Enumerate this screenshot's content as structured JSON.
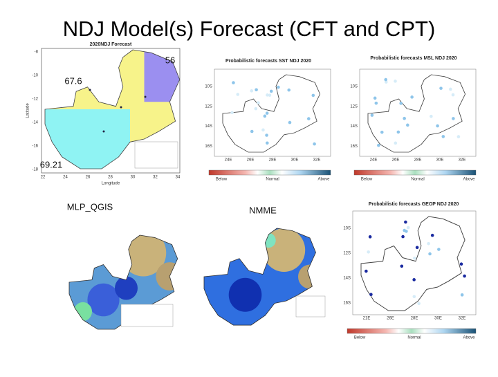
{
  "title": "NDJ Model(s) Forecast  (CFT and CPT)",
  "annotations": {
    "north_east": "56",
    "north_west": "67.6",
    "south_west": "69.21"
  },
  "cft_map": {
    "title": "2020NDJ Forecast",
    "x_label": "Longitude",
    "y_label": "Latitude",
    "xticks": [
      "22",
      "24",
      "26",
      "28",
      "30",
      "32",
      "34"
    ],
    "yticks": [
      "-8",
      "-10",
      "-12",
      "-14",
      "-16",
      "-18"
    ]
  },
  "sst_map": {
    "title": "Probabilistic forecasts SST NDJ 2020",
    "yticks": [
      "10S",
      "12S",
      "14S",
      "16S"
    ],
    "xticks": [
      "24E",
      "26E",
      "28E",
      "30E",
      "32E"
    ],
    "colorbar": [
      "Below",
      "Normal",
      "Above"
    ]
  },
  "msl_map": {
    "title": "Probabilistic forecasts MSL NDJ 2020",
    "yticks": [
      "10S",
      "12S",
      "14S",
      "16S"
    ],
    "xticks": [
      "24E",
      "26E",
      "28E",
      "30E",
      "32E"
    ],
    "colorbar": [
      "Below",
      "Normal",
      "Above"
    ]
  },
  "geop_map": {
    "title": "Probabilistic forecasts GEOP NDJ 2020",
    "yticks": [
      "10S",
      "12S",
      "14S",
      "16S"
    ],
    "xticks": [
      "21E",
      "26E",
      "28E",
      "30E",
      "32E"
    ],
    "colorbar": [
      "Below",
      "Normal",
      "Above"
    ]
  },
  "labels": {
    "mlp": "MLP_QGIS",
    "nmme": "NMME"
  }
}
